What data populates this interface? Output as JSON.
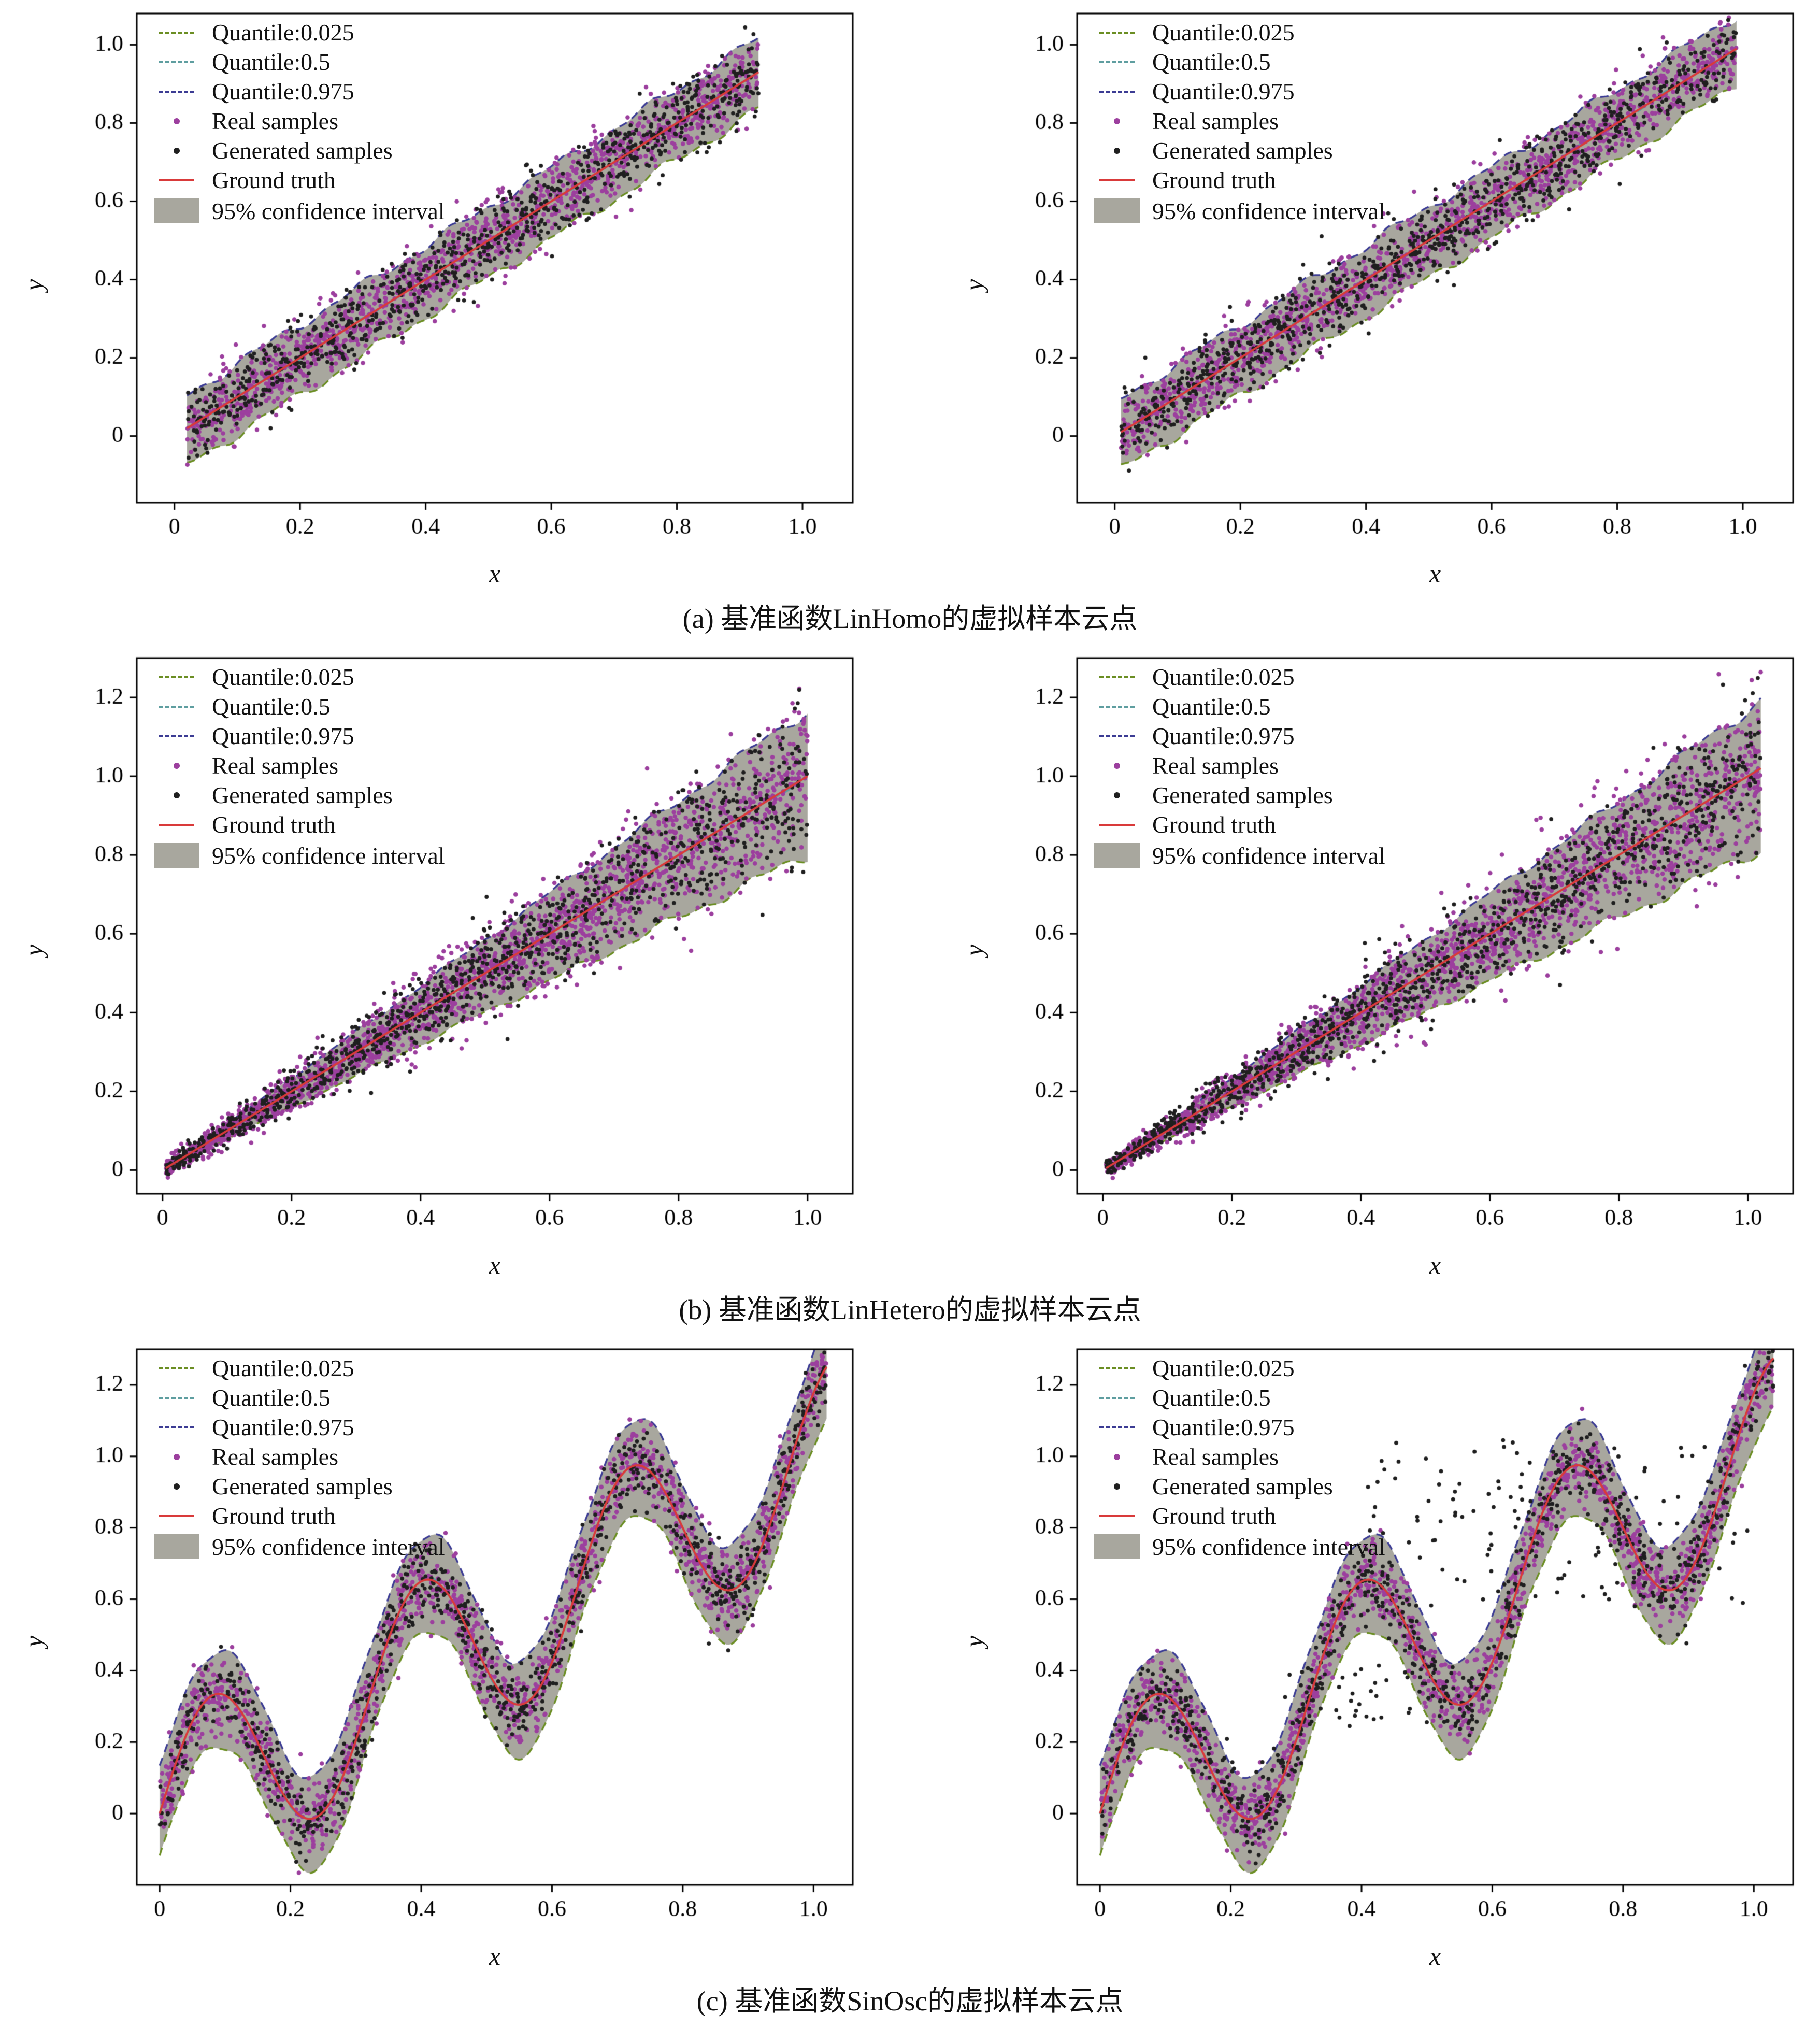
{
  "captions": {
    "a": "(a)  基准函数LinHomo的虚拟样本云点",
    "b": "(b)  基准函数LinHetero的虚拟样本云点",
    "c": "(c)  基准函数SinOsc的虚拟样本云点"
  },
  "legend": {
    "items": [
      {
        "label": "Quantile:0.025",
        "type": "dashed-line",
        "color": "#6b8e23"
      },
      {
        "label": "Quantile:0.5",
        "type": "dashed-line",
        "color": "#5f9ea0"
      },
      {
        "label": "Quantile:0.975",
        "type": "dashed-line",
        "color": "#3c3c94"
      },
      {
        "label": "Real samples",
        "type": "dot",
        "color": "#9c3f9e"
      },
      {
        "label": "Generated samples",
        "type": "dot",
        "color": "#1f1f1f"
      },
      {
        "label": "Ground truth",
        "type": "line",
        "color": "#d93a3a"
      },
      {
        "label": "95% confidence interval",
        "type": "patch",
        "color": "#a8a79e"
      }
    ]
  },
  "plot_colors": {
    "band": "#a8a79e",
    "real": "#9c3f9e",
    "generated": "#1f1f1f",
    "ground_truth": "#d93a3a",
    "quantile_lower": "#6b8e23",
    "quantile_mid": "#5f9ea0",
    "quantile_upper": "#3c3c94",
    "axis": "#000000"
  },
  "chart_data": [
    {
      "type": "scatter",
      "function_name": "LinHomo",
      "caption_key": "a",
      "xlabel": "x",
      "ylabel": "y",
      "xlim": [
        -0.06,
        1.08
      ],
      "ylim": [
        -0.17,
        1.08
      ],
      "xticks": [
        0,
        0.2,
        0.4,
        0.6,
        0.8,
        1.0
      ],
      "xtick_labels": [
        "0",
        "0.2",
        "0.4",
        "0.6",
        "0.8",
        "1.0"
      ],
      "yticks": [
        0,
        0.2,
        0.4,
        0.6,
        0.8,
        1.0
      ],
      "ytick_labels": [
        "0",
        "0.2",
        "0.4",
        "0.6",
        "0.8",
        "1.0"
      ],
      "model": {
        "kind": "linear",
        "slope": 1,
        "intercept": 0
      },
      "band": {
        "mode": "offset",
        "lower": -0.095,
        "upper": 0.085,
        "edge_wiggle": 0.01
      },
      "noise_sigma": {
        "const": 0.048,
        "slope": 0
      },
      "ground_truth_samples": {
        "x": [
          0,
          0.1,
          0.2,
          0.3,
          0.4,
          0.5,
          0.6,
          0.7,
          0.8,
          0.9,
          1.0
        ],
        "y": [
          0,
          0.1,
          0.2,
          0.3,
          0.4,
          0.5,
          0.6,
          0.7,
          0.8,
          0.9,
          1.0
        ]
      },
      "panels": [
        {
          "side": "left",
          "seed": 11,
          "x_range": [
            0.02,
            0.93
          ],
          "real_n": 1300,
          "generated_n": 850
        },
        {
          "side": "right",
          "seed": 47,
          "x_range": [
            0.01,
            0.99
          ],
          "real_n": 1350,
          "generated_n": 900
        }
      ]
    },
    {
      "type": "scatter",
      "function_name": "LinHetero",
      "caption_key": "b",
      "xlabel": "x",
      "ylabel": "y",
      "xlim": [
        -0.04,
        1.07
      ],
      "ylim": [
        -0.06,
        1.3
      ],
      "xticks": [
        0,
        0.2,
        0.4,
        0.6,
        0.8,
        1.0
      ],
      "xtick_labels": [
        "0",
        "0.2",
        "0.4",
        "0.6",
        "0.8",
        "1.0"
      ],
      "yticks": [
        0,
        0.2,
        0.4,
        0.6,
        0.8,
        1.0,
        1.2
      ],
      "ytick_labels": [
        "0",
        "0.2",
        "0.4",
        "0.6",
        "0.8",
        "1.0",
        "1.2"
      ],
      "model": {
        "kind": "linear",
        "slope": 1,
        "intercept": 0
      },
      "band": {
        "mode": "scale",
        "lower": 0.8,
        "upper": 1.17,
        "edge_wiggle": 0.012
      },
      "noise_sigma": {
        "const": 0.01,
        "slope": 0.088
      },
      "ground_truth_samples": {
        "x": [
          0,
          0.1,
          0.2,
          0.3,
          0.4,
          0.5,
          0.6,
          0.7,
          0.8,
          0.9,
          1.0
        ],
        "y": [
          0,
          0.1,
          0.2,
          0.3,
          0.4,
          0.5,
          0.6,
          0.7,
          0.8,
          0.9,
          1.0
        ]
      },
      "panels": [
        {
          "side": "left",
          "seed": 7,
          "x_range": [
            0.005,
            1.0
          ],
          "real_n": 1900,
          "generated_n": 1050
        },
        {
          "side": "right",
          "seed": 91,
          "x_range": [
            0.005,
            1.02
          ],
          "real_n": 1900,
          "generated_n": 1100
        }
      ]
    },
    {
      "type": "scatter",
      "function_name": "SinOsc",
      "caption_key": "c",
      "xlabel": "x",
      "ylabel": "y",
      "xlim": [
        -0.035,
        1.06
      ],
      "ylim": [
        -0.2,
        1.3
      ],
      "xticks": [
        0,
        0.2,
        0.4,
        0.6,
        0.8,
        1.0
      ],
      "xtick_labels": [
        "0",
        "0.2",
        "0.4",
        "0.6",
        "0.8",
        "1.0"
      ],
      "yticks": [
        0,
        0.2,
        0.4,
        0.6,
        0.8,
        1.0,
        1.2
      ],
      "ytick_labels": [
        "0",
        "0.2",
        "0.4",
        "0.6",
        "0.8",
        "1.0",
        "1.2"
      ],
      "model": {
        "kind": "sin_trend",
        "slope": 1,
        "amplitude": 0.25,
        "period": 0.32,
        "phase": 0
      },
      "band": {
        "mode": "offset",
        "lower": -0.135,
        "upper": 0.125,
        "edge_wiggle": 0.012
      },
      "noise_sigma": {
        "const": 0.055,
        "slope": 0
      },
      "ground_truth_samples": {
        "x": [
          0,
          0.04,
          0.08,
          0.12,
          0.16,
          0.2,
          0.24,
          0.28,
          0.32,
          0.36,
          0.4,
          0.44,
          0.48,
          0.52,
          0.56,
          0.6,
          0.64,
          0.68,
          0.72,
          0.76,
          0.8,
          0.84,
          0.88,
          0.92,
          0.96,
          1.0,
          1.04
        ],
        "y": [
          0,
          0.217,
          0.33,
          0.297,
          0.16,
          0.023,
          -0.01,
          0.103,
          0.32,
          0.537,
          0.65,
          0.617,
          0.48,
          0.343,
          0.31,
          0.423,
          0.64,
          0.857,
          0.97,
          0.937,
          0.8,
          0.663,
          0.63,
          0.743,
          0.96,
          1.177,
          1.29
        ]
      },
      "panels": [
        {
          "side": "left",
          "seed": 23,
          "x_range": [
            0.0,
            1.02
          ],
          "real_n": 1500,
          "generated_n": 900
        },
        {
          "side": "right",
          "seed": 61,
          "x_range": [
            0.0,
            1.03
          ],
          "real_n": 1500,
          "generated_n": 800,
          "extra_clusters": [
            {
              "n": 120,
              "x_range": [
                0.4,
                1.0
              ],
              "y_range": [
                0.58,
                1.05
              ]
            },
            {
              "n": 45,
              "x_range": [
                0.28,
                0.55
              ],
              "y_range": [
                0.24,
                0.42
              ]
            }
          ]
        }
      ]
    }
  ]
}
